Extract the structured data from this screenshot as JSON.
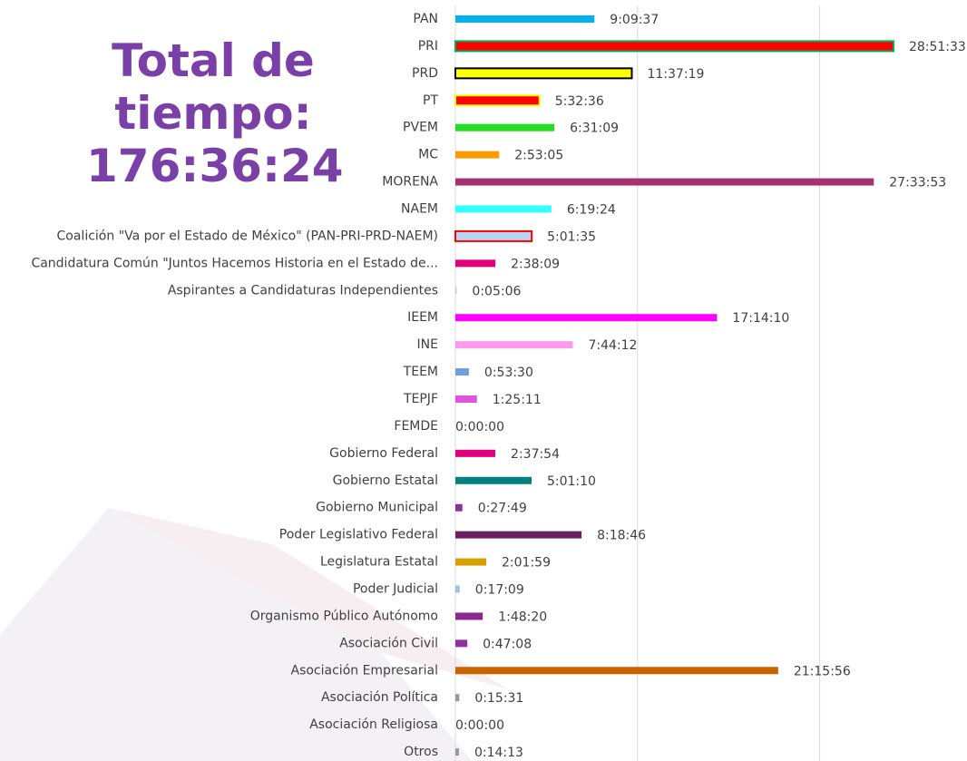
{
  "chart_data": {
    "type": "barh",
    "title": "Total de tiempo: 176:36:24",
    "categories": [
      "PAN",
      "PRI",
      "PRD",
      "PT",
      "PVEM",
      "MC",
      "MORENA",
      "NAEM",
      "Coalición \"Va por el Estado de México\" (PAN-PRI-PRD-NAEM)",
      "Candidatura Común \"Juntos Hacemos Historia en el Estado de...",
      "Aspirantes a Candidaturas Independientes",
      "IEEM",
      "INE",
      "TEEM",
      "TEPJF",
      "FEMDE",
      "Gobierno Federal",
      "Gobierno Estatal",
      "Gobierno Municipal",
      "Poder Legislativo Federal",
      "Legislatura Estatal",
      "Poder Judicial",
      "Organismo Público Autónomo",
      "Asociación Civil",
      "Asociación Empresarial",
      "Asociación Política",
      "Asociación Religiosa",
      "Otros"
    ],
    "values": [
      32977,
      103893,
      41839,
      19956,
      23469,
      10385,
      99233,
      22764,
      18095,
      9489,
      306,
      62050,
      27852,
      3210,
      5111,
      0,
      9474,
      18070,
      1669,
      29926,
      7319,
      1029,
      6500,
      2828,
      76556,
      931,
      0,
      853
    ],
    "value_labels": [
      "9:09:37",
      "28:51:33",
      "11:37:19",
      "5:32:36",
      "6:31:09",
      "2:53:05",
      "27:33:53",
      "6:19:24",
      "5:01:35",
      "2:38:09",
      "0:05:06",
      "17:14:10",
      "7:44:12",
      "0:53:30",
      "1:25:11",
      "0:00:00",
      "2:37:54",
      "5:01:10",
      "0:27:49",
      "8:18:46",
      "2:01:59",
      "0:17:09",
      "1:48:20",
      "0:47:08",
      "21:15:56",
      "0:15:31",
      "0:00:00",
      "0:14:13"
    ],
    "colors": [
      "#00b0f0",
      "#ff0000",
      "#ffff00",
      "#ff0000",
      "#22dd22",
      "#ff9900",
      "#a5336f",
      "#33ffff",
      "#b4d4f0",
      "#e0007a",
      "#cccccc",
      "#ff00ff",
      "#ff99ee",
      "#6fa0dc",
      "#dd55dd",
      "#999999",
      "#e0007a",
      "#00807f",
      "#9030a0",
      "#6a2060",
      "#d4a000",
      "#a0c0e0",
      "#8a2890",
      "#9030a0",
      "#c86400",
      "#999999",
      "#999999",
      "#999999"
    ],
    "edgecolors": [
      null,
      "#00b050",
      "#000000",
      "#ffff00",
      null,
      null,
      null,
      null,
      "#ff0000",
      null,
      null,
      null,
      null,
      null,
      null,
      null,
      null,
      null,
      null,
      null,
      null,
      null,
      null,
      null,
      null,
      null,
      null,
      null
    ],
    "xlim": [
      0,
      115200
    ],
    "xticks": [
      0,
      43200,
      86400
    ],
    "grid": true
  }
}
